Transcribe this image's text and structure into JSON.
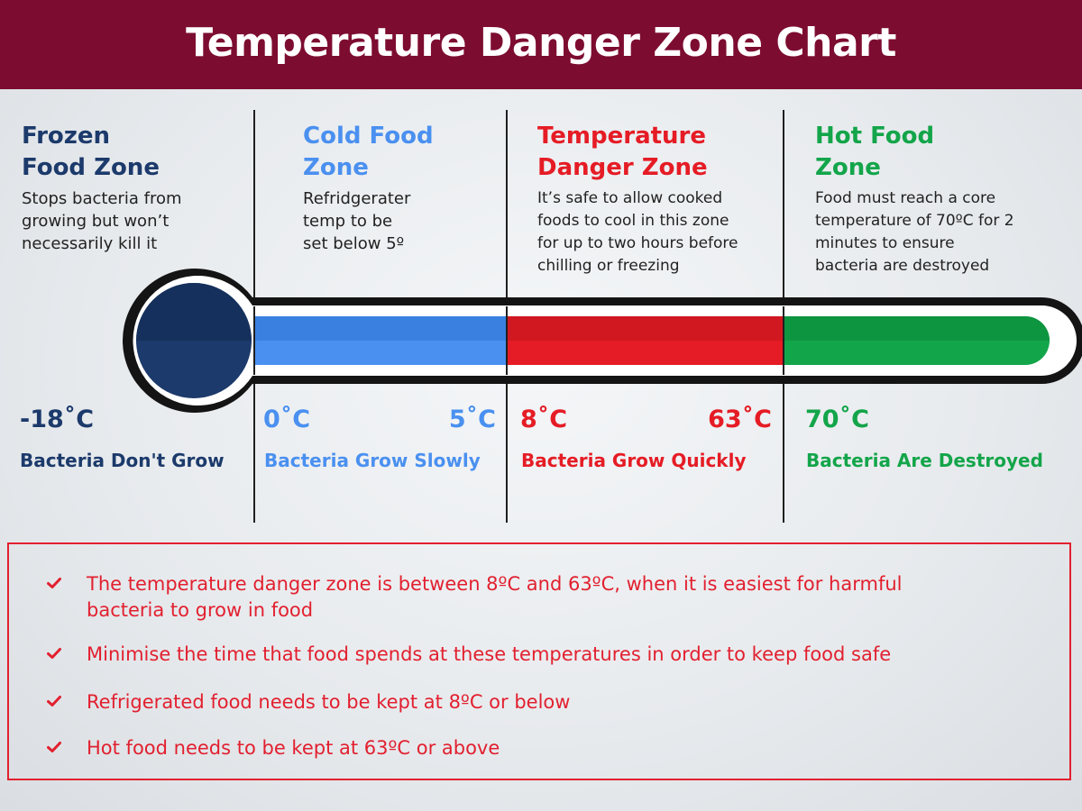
{
  "header": {
    "title": "Temperature Danger Zone Chart"
  },
  "zones": [
    {
      "title_line1": "Frozen",
      "title_line2": "Food Zone",
      "description": [
        "Stops bacteria from",
        "growing but won’t",
        "necessarily kill it"
      ],
      "temp_left": "-18˚C",
      "temp_right": "",
      "label": "Bacteria Don't Grow",
      "color": "#1c3a6b"
    },
    {
      "title_line1": "Cold Food",
      "title_line2": "Zone",
      "description": [
        "Refridgerater",
        "temp to be",
        "set below 5º"
      ],
      "temp_left": "0˚C",
      "temp_right": "5˚C",
      "label": "Bacteria Grow Slowly",
      "color": "#4a90f0"
    },
    {
      "title_line1": "Temperature",
      "title_line2": "Danger Zone",
      "description": [
        "It’s safe to allow cooked",
        "foods to cool in this zone",
        "for up to two hours before",
        "chilling or freezing"
      ],
      "temp_left": "8˚C",
      "temp_right": "63˚C",
      "label": "Bacteria Grow Quickly",
      "color": "#e51c25"
    },
    {
      "title_line1": "Hot Food",
      "title_line2": "Zone",
      "description": [
        "Food must reach a core",
        "temperature of 70ºC for 2",
        "minutes to ensure",
        "bacteria are destroyed"
      ],
      "temp_left": "70˚C",
      "temp_right": "",
      "label": "Bacteria Are Destroyed",
      "color": "#13a54a"
    }
  ],
  "thermometer": {
    "bulb_color": "#1c3a6b",
    "segment_colors": [
      "#4a90f0",
      "#e51c25",
      "#13a54a"
    ]
  },
  "notes": [
    [
      "The temperature danger zone is between 8ºC and 63ºC, when it is easiest for harmful",
      "bacteria to grow in food"
    ],
    [
      "Minimise the time that food spends at these temperatures in order to keep food safe"
    ],
    [
      "Refrigerated food needs to be kept at 8ºC or below"
    ],
    [
      "Hot food needs to be kept at 63ºC or above"
    ]
  ],
  "notes_color": "#e2202f"
}
